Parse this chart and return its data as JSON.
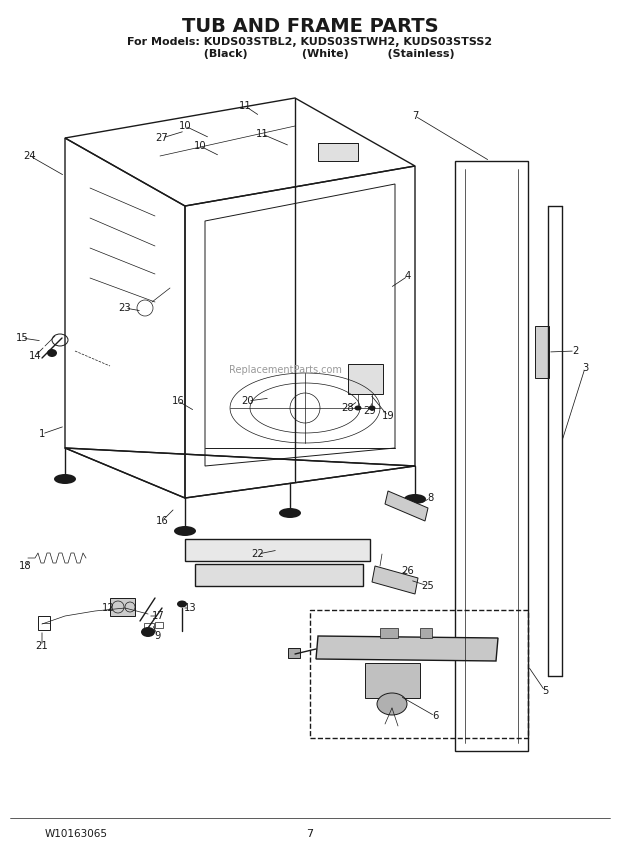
{
  "title": "TUB AND FRAME PARTS",
  "subtitle1": "For Models: KUDS03STBL2, KUDS03STWH2, KUDS03STSS2",
  "subtitle2": "          (Black)              (White)          (Stainless)",
  "footer_left": "W10163065",
  "footer_center": "7",
  "bg_color": "#ffffff",
  "line_color": "#1a1a1a",
  "watermark": "ReplacementParts.com"
}
